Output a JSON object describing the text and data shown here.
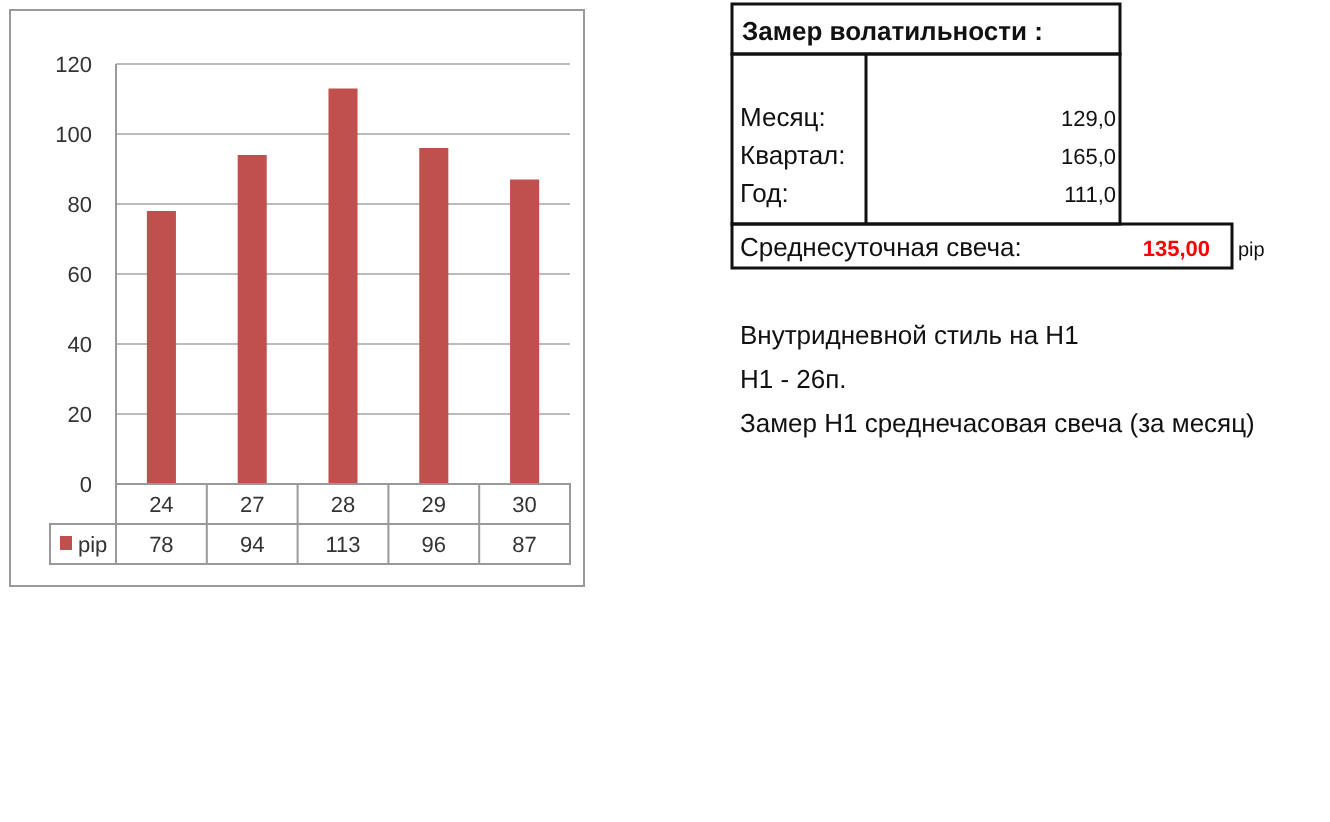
{
  "chart_data": [
    {
      "type": "bar",
      "categories": [
        "24",
        "27",
        "28",
        "29",
        "30"
      ],
      "series": [
        {
          "name": "pip",
          "color": "#c0504d",
          "values": [
            78,
            94,
            113,
            96,
            87
          ]
        }
      ],
      "ylim": [
        0,
        120
      ],
      "yticks": [
        0,
        20,
        40,
        60,
        80,
        100,
        120
      ],
      "grid": "y",
      "data_labels": true,
      "legend": "bottom"
    },
    {
      "type": "other",
      "title": "Замер  волатильности  :",
      "annotations": [
        "Месяц:",
        "129,0",
        "Квартал:",
        "165,0",
        "Год:",
        "111,0",
        "Среднесуточная свеча:",
        "135,00",
        "pip",
        "Внутридневной стиль на H1",
        "H1 - 26п.",
        "Замер H1 среднечасовая свеча (за месяц)"
      ]
    }
  ]
}
